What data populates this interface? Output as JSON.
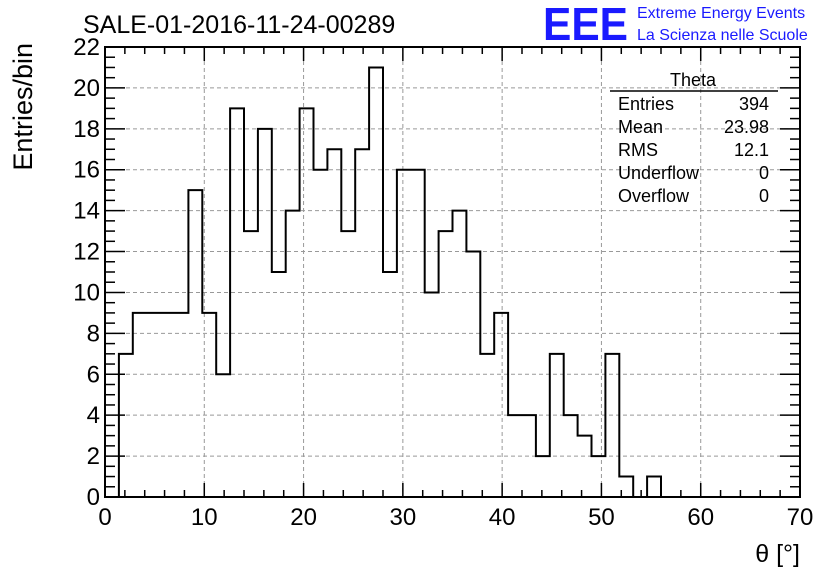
{
  "title": "SALE-01-2016-11-24-00289",
  "logo": {
    "mark": "EEE",
    "line1": "Extreme Energy Events",
    "line2": "La Scienza nelle Scuole",
    "color": "#1a1aff"
  },
  "stats": {
    "name": "Theta",
    "rows": [
      {
        "label": "Entries",
        "value": "394"
      },
      {
        "label": "Mean",
        "value": "23.98"
      },
      {
        "label": "RMS",
        "value": "12.1"
      },
      {
        "label": "Underflow",
        "value": "0"
      },
      {
        "label": "Overflow",
        "value": "0"
      }
    ]
  },
  "chart_data": {
    "type": "bar",
    "title": "SALE-01-2016-11-24-00289",
    "xlabel": "θ [°]",
    "ylabel": "Entries/bin",
    "xlim": [
      0,
      70
    ],
    "ylim": [
      0,
      22
    ],
    "bin_width": 1.4,
    "bin_start": 0,
    "values": [
      0,
      7,
      9,
      9,
      9,
      9,
      15,
      9,
      6,
      19,
      13,
      18,
      11,
      14,
      19,
      16,
      17,
      13,
      17,
      21,
      11,
      16,
      16,
      10,
      13,
      14,
      12,
      7,
      9,
      4,
      4,
      2,
      7,
      4,
      3,
      2,
      7,
      1,
      0,
      1,
      0,
      0,
      0,
      0,
      0,
      0,
      0,
      0,
      0,
      0
    ],
    "xticks": [
      0,
      10,
      20,
      30,
      40,
      50,
      60,
      70
    ],
    "yticks": [
      0,
      2,
      4,
      6,
      8,
      10,
      12,
      14,
      16,
      18,
      20,
      22
    ],
    "grid": true,
    "line_color": "#000000"
  }
}
